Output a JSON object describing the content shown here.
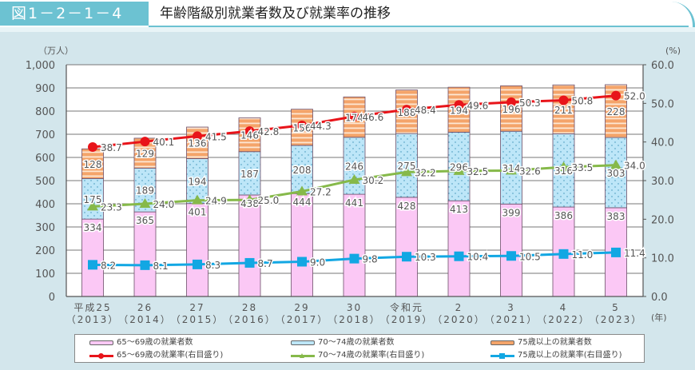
{
  "header": {
    "figure_number": "図1－2－1－4",
    "title": "年齢階級別就業者数及び就業率の推移"
  },
  "axes": {
    "left_unit": "（万人）",
    "right_unit": "(%)",
    "x_unit": "(年)",
    "left_ticks": [
      "0",
      "100",
      "200",
      "300",
      "400",
      "500",
      "600",
      "700",
      "800",
      "900",
      "1,000"
    ],
    "right_ticks": [
      "0.0",
      "10.0",
      "20.0",
      "30.0",
      "40.0",
      "50.0",
      "60.0"
    ]
  },
  "legend": {
    "items": [
      {
        "label": "65～69歳の就業者数",
        "color": "#fbc8f5",
        "kind": "bar"
      },
      {
        "label": "70～74歳の就業者数",
        "color": "#bde6f8",
        "kind": "bar"
      },
      {
        "label": "75歳以上の就業者数",
        "color": "#f4a46a",
        "kind": "bar"
      },
      {
        "label": "65～69歳の就業率(右目盛り)",
        "color": "#e8141a",
        "kind": "line"
      },
      {
        "label": "70～74歳の就業率(右目盛り)",
        "color": "#86b94a",
        "kind": "line"
      },
      {
        "label": "75歳以上の就業率(右目盛り)",
        "color": "#12a7e3",
        "kind": "line"
      }
    ]
  },
  "chart_data": {
    "type": "bar",
    "title": "年齢階級別就業者数及び就業率の推移",
    "xlabel": "(年)",
    "ylabel": "（万人）",
    "ylabel_right": "(%)",
    "ylim": [
      0,
      1000
    ],
    "ylim_right": [
      0,
      60
    ],
    "grid": true,
    "legend_position": "bottom",
    "categories": [
      "平成25(2013)",
      "26(2014)",
      "27(2015)",
      "28(2016)",
      "29(2017)",
      "30(2018)",
      "令和元(2019)",
      "2(2020)",
      "3(2021)",
      "4(2022)",
      "5(2023)"
    ],
    "category_top": [
      "平成25",
      "26",
      "27",
      "28",
      "29",
      "30",
      "令和元",
      "2",
      "3",
      "4",
      "5"
    ],
    "category_bottom": [
      "（2013）",
      "（2014）",
      "（2015）",
      "（2016）",
      "（2017）",
      "（2018）",
      "（2019）",
      "（2020）",
      "（2021）",
      "（2022）",
      "（2023）"
    ],
    "series": [
      {
        "name": "65～69歳の就業者数",
        "type": "stacked-bar",
        "axis": "left",
        "values": [
          334,
          365,
          401,
          438,
          444,
          441,
          428,
          413,
          399,
          386,
          383
        ]
      },
      {
        "name": "70～74歳の就業者数",
        "type": "stacked-bar",
        "axis": "left",
        "values": [
          175,
          189,
          194,
          187,
          208,
          246,
          275,
          296,
          314,
          316,
          303
        ]
      },
      {
        "name": "75歳以上の就業者数",
        "type": "stacked-bar",
        "axis": "left",
        "values": [
          128,
          129,
          136,
          146,
          156,
          174,
          188,
          194,
          196,
          211,
          228
        ]
      },
      {
        "name": "65～69歳の就業率(右目盛り)",
        "type": "line",
        "axis": "right",
        "values": [
          38.7,
          40.1,
          41.5,
          42.8,
          44.3,
          46.6,
          48.4,
          49.6,
          50.3,
          50.8,
          52.0
        ]
      },
      {
        "name": "70～74歳の就業率(右目盛り)",
        "type": "line",
        "axis": "right",
        "values": [
          23.3,
          24.0,
          24.9,
          25.0,
          27.2,
          30.2,
          32.2,
          32.5,
          32.6,
          33.5,
          34.0
        ]
      },
      {
        "name": "75歳以上の就業率(右目盛り)",
        "type": "line",
        "axis": "right",
        "values": [
          8.2,
          8.1,
          8.3,
          8.7,
          9.0,
          9.8,
          10.3,
          10.4,
          10.5,
          11.0,
          11.4
        ]
      }
    ]
  }
}
